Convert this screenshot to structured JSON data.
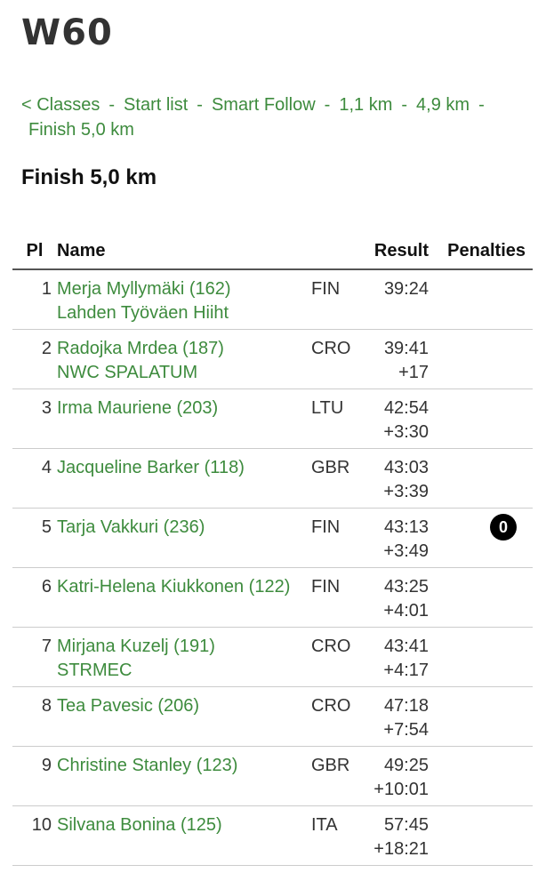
{
  "title": "W60",
  "breadcrumb": {
    "classes": "< Classes",
    "start_list": "Start list",
    "smart_follow": "Smart Follow",
    "split1": "1,1 km",
    "split2": "4,9 km",
    "finish": "Finish 5,0 km",
    "sep": "-"
  },
  "section_title": "Finish 5,0 km",
  "columns": {
    "pl": "Pl",
    "name": "Name",
    "result": "Result",
    "penalties": "Penalties"
  },
  "rows": [
    {
      "pl": "1",
      "name": "Merja Myllymäki (162)",
      "club": "Lahden Työväen Hiiht",
      "nat": "FIN",
      "time": "39:24",
      "diff": "",
      "penalty": ""
    },
    {
      "pl": "2",
      "name": "Radojka Mrde\u0003a (187)",
      "club": "NWC SPALATUM",
      "nat": "CRO",
      "time": "39:41",
      "diff": "+17",
      "penalty": ""
    },
    {
      "pl": "3",
      "name": "Irma Mauriene (203)",
      "club": "",
      "nat": "LTU",
      "time": "42:54",
      "diff": "+3:30",
      "penalty": ""
    },
    {
      "pl": "4",
      "name": "Jacqueline Barker (118)",
      "club": "",
      "nat": "GBR",
      "time": "43:03",
      "diff": "+3:39",
      "penalty": ""
    },
    {
      "pl": "5",
      "name": "Tarja Vakkuri (236)",
      "club": "",
      "nat": "FIN",
      "time": "43:13",
      "diff": "+3:49",
      "penalty": "0"
    },
    {
      "pl": "6",
      "name": "Katri-Helena Kiukkonen (122)",
      "club": "",
      "nat": "FIN",
      "time": "43:25",
      "diff": "+4:01",
      "penalty": ""
    },
    {
      "pl": "7",
      "name": "Mirjana Kuzelj (191)",
      "club": "STRMEC",
      "nat": "CRO",
      "time": "43:41",
      "diff": "+4:17",
      "penalty": ""
    },
    {
      "pl": "8",
      "name": "Tea Pavesic (206)",
      "club": "",
      "nat": "CRO",
      "time": "47:18",
      "diff": "+7:54",
      "penalty": ""
    },
    {
      "pl": "9",
      "name": "Christine Stanley (123)",
      "club": "",
      "nat": "GBR",
      "time": "49:25",
      "diff": "+10:01",
      "penalty": ""
    },
    {
      "pl": "10",
      "name": "Silvana Bonina (125)",
      "club": "",
      "nat": "ITA",
      "time": "57:45",
      "diff": "+18:21",
      "penalty": ""
    }
  ],
  "colors": {
    "link": "#3d8b3d",
    "badge": "#000000"
  }
}
